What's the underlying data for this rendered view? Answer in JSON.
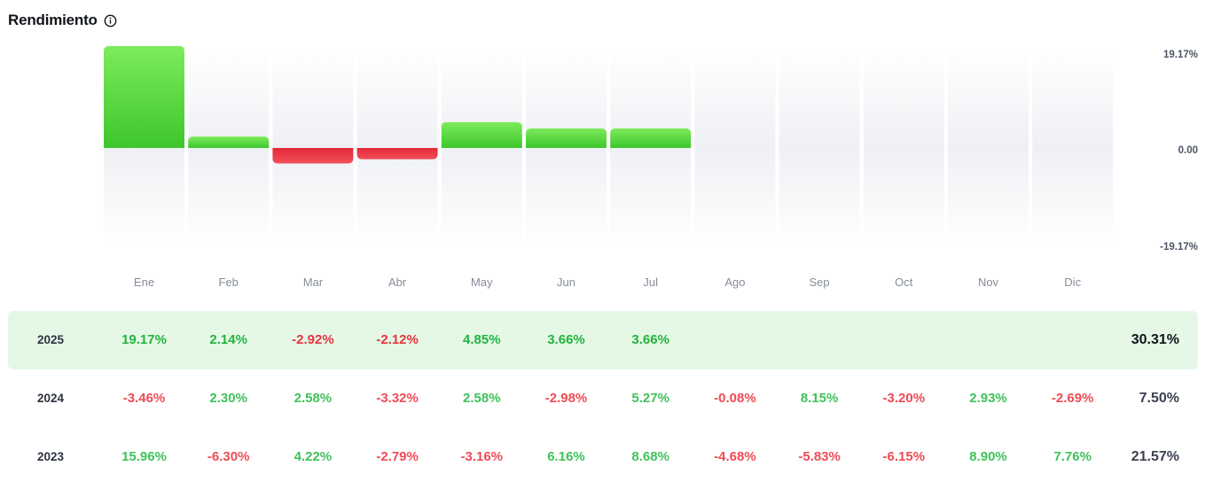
{
  "header": {
    "title": "Rendimiento",
    "info_icon": "info-circle-icon"
  },
  "chart_data": {
    "type": "bar",
    "categories": [
      "Ene",
      "Feb",
      "Mar",
      "Abr",
      "May",
      "Jun",
      "Jul",
      "Ago",
      "Sep",
      "Oct",
      "Nov",
      "Dic"
    ],
    "values": [
      19.17,
      2.14,
      -2.92,
      -2.12,
      4.85,
      3.66,
      3.66,
      null,
      null,
      null,
      null,
      null
    ],
    "yticks": [
      "19.17%",
      "0.00",
      "-19.17%"
    ],
    "ylim": [
      -19.17,
      19.17
    ],
    "colors": {
      "positive": "#3ec62c",
      "positive_light": "#7deb5c",
      "negative": "#e42a36",
      "negative_light": "#f0505a",
      "track": "#f0f1f5"
    }
  },
  "table": {
    "rows": [
      {
        "year": "2025",
        "highlight": true,
        "values": [
          "19.17%",
          "2.14%",
          "-2.92%",
          "-2.12%",
          "4.85%",
          "3.66%",
          "3.66%",
          "",
          "",
          "",
          "",
          ""
        ],
        "total": "30.31%"
      },
      {
        "year": "2024",
        "highlight": false,
        "values": [
          "-3.46%",
          "2.30%",
          "2.58%",
          "-3.32%",
          "2.58%",
          "-2.98%",
          "5.27%",
          "-0.08%",
          "8.15%",
          "-3.20%",
          "2.93%",
          "-2.69%"
        ],
        "total": "7.50%"
      },
      {
        "year": "2023",
        "highlight": false,
        "values": [
          "15.96%",
          "-6.30%",
          "4.22%",
          "-2.79%",
          "-3.16%",
          "6.16%",
          "8.68%",
          "-4.68%",
          "-5.83%",
          "-6.15%",
          "8.90%",
          "7.76%"
        ],
        "total": "21.57%"
      }
    ]
  }
}
